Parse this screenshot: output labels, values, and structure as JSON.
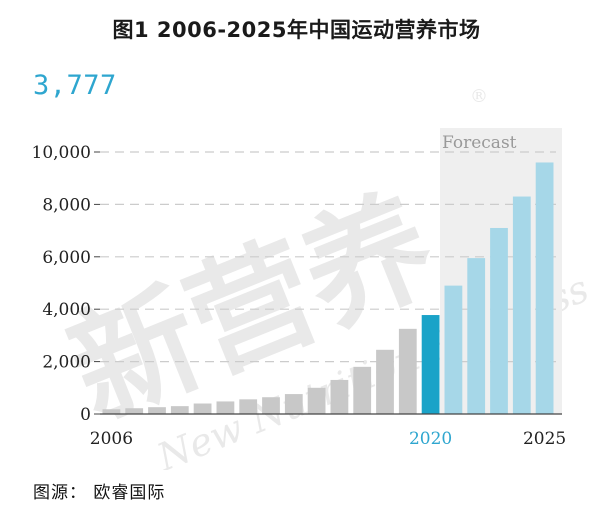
{
  "title": "图1 2006-2025年中国运动营养市场",
  "highlight_value": "3,777",
  "source": "图源： 欧睿国际",
  "forecast_label": "Forecast",
  "watermark": {
    "text_cn": "新营养",
    "text_en": "New Nutrition Business",
    "registered": "®"
  },
  "colors": {
    "historical": "#c8c8c8",
    "highlight": "#1aa3c8",
    "forecast": "#a6d7e8",
    "forecast_bg": "#efefef",
    "grid": "#cccccc",
    "highlight_text": "#2ea6cf"
  },
  "chart_data": {
    "type": "bar",
    "title": "图1 2006-2025年中国运动营养市场",
    "categories": [
      "2006",
      "2007",
      "2008",
      "2009",
      "2010",
      "2011",
      "2012",
      "2013",
      "2014",
      "2015",
      "2016",
      "2017",
      "2018",
      "2019",
      "2020",
      "2021",
      "2022",
      "2023",
      "2024",
      "2025"
    ],
    "values": [
      180,
      220,
      260,
      300,
      400,
      480,
      560,
      640,
      760,
      1000,
      1300,
      1800,
      2450,
      3250,
      3777,
      4900,
      5950,
      7100,
      8300,
      9600
    ],
    "x_tick_labels": [
      {
        "category": "2006",
        "label": "2006"
      },
      {
        "category": "2020",
        "label": "2020"
      },
      {
        "category": "2025",
        "label": "2025"
      }
    ],
    "y_ticks": [
      0,
      2000,
      4000,
      6000,
      8000,
      10000
    ],
    "y_tick_labels": [
      "0",
      "2,000",
      "4,000",
      "6,000",
      "8,000",
      "10,000"
    ],
    "ylim": [
      0,
      10000
    ],
    "highlight_category": "2020",
    "forecast_categories": [
      "2021",
      "2022",
      "2023",
      "2024",
      "2025"
    ],
    "grid": true,
    "xlabel": "",
    "ylabel": ""
  }
}
